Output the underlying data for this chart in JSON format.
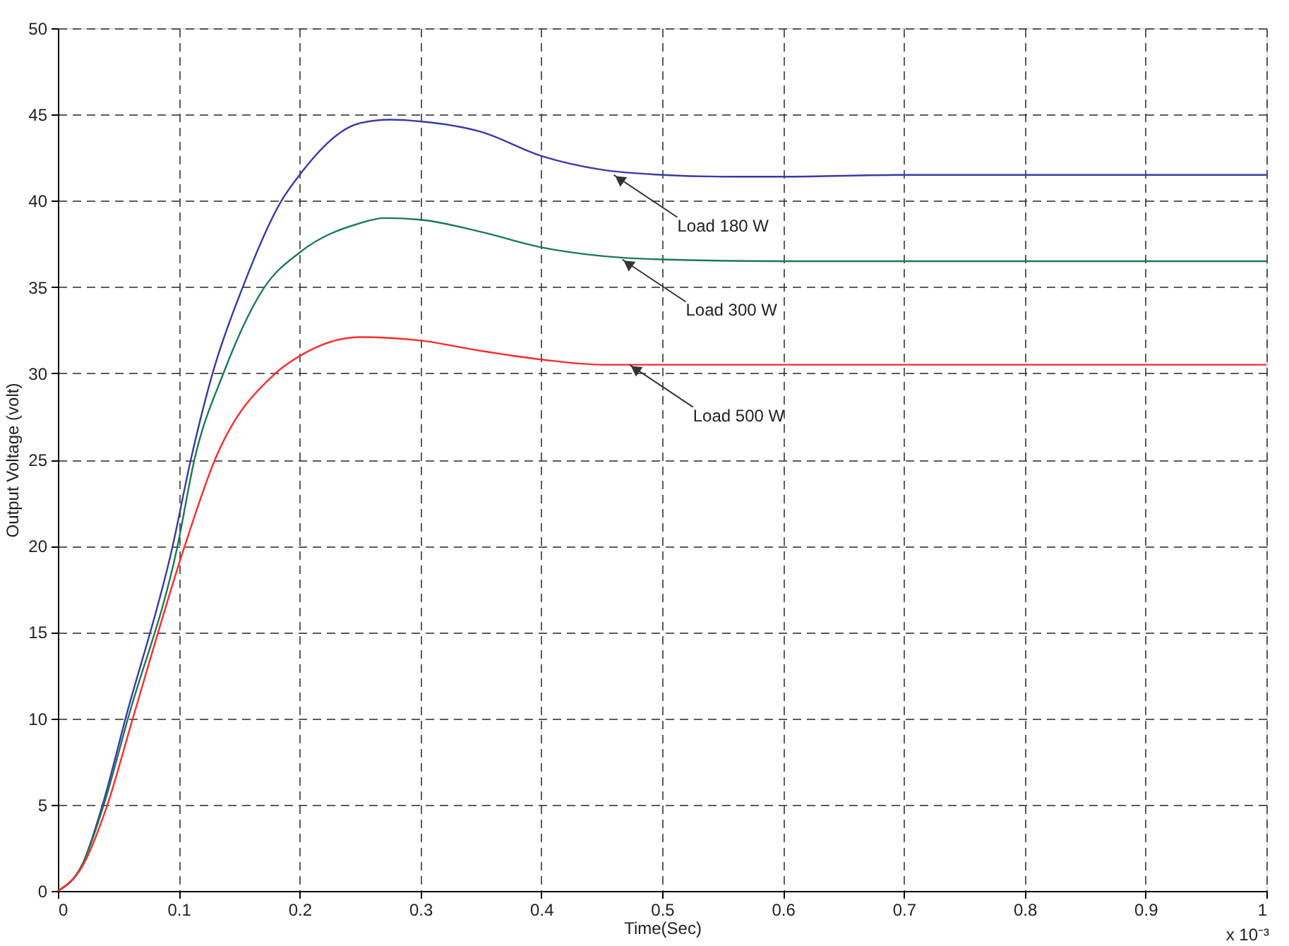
{
  "chart_data": {
    "type": "line",
    "xlabel": "Time(Sec)",
    "ylabel": "Output Voltage (volt)",
    "xlim": [
      0,
      1
    ],
    "ylim": [
      0,
      50
    ],
    "xticks": [
      0,
      0.1,
      0.2,
      0.3,
      0.4,
      0.5,
      0.6,
      0.7,
      0.8,
      0.9,
      1
    ],
    "yticks": [
      0,
      5,
      10,
      15,
      20,
      25,
      30,
      35,
      40,
      45,
      50
    ],
    "grid": true,
    "line_style": "solid",
    "marker": "none",
    "annotations": [
      {
        "text": "Load 180 W",
        "x": 0.46,
        "y": 41.5
      },
      {
        "text": "Load 300 W",
        "x": 0.467,
        "y": 36.6
      },
      {
        "text": "Load 500 W",
        "x": 0.473,
        "y": 30.5
      },
      "x 10⁻³"
    ],
    "series": [
      {
        "color": "#3a3aa8",
        "x": [
          0,
          0.02,
          0.037,
          0.056,
          0.095,
          0.11,
          0.128,
          0.153,
          0.185,
          0.2,
          0.25,
          0.275,
          0.3,
          0.35,
          0.4,
          0.45,
          0.5,
          0.55,
          0.6,
          0.7,
          0.8,
          0.9,
          1
        ],
        "values": [
          0,
          1.5,
          5,
          10,
          20,
          25,
          30,
          35,
          40,
          41.5,
          44.5,
          44.7,
          44.6,
          44.0,
          42.6,
          41.8,
          41.5,
          41.4,
          41.4,
          41.5,
          41.5,
          41.5,
          41.5
        ]
      },
      {
        "color": "#1a7a55",
        "x": [
          0,
          0.02,
          0.038,
          0.058,
          0.099,
          0.113,
          0.137,
          0.171,
          0.2,
          0.25,
          0.27,
          0.3,
          0.35,
          0.4,
          0.45,
          0.5,
          0.6,
          0.7,
          0.8,
          0.9,
          1
        ],
        "values": [
          0,
          1.5,
          5,
          10,
          20,
          25,
          30,
          35,
          37,
          38.7,
          39.0,
          38.9,
          38.2,
          37.3,
          36.8,
          36.6,
          36.5,
          36.5,
          36.5,
          36.5,
          36.5
        ]
      },
      {
        "color": "#ff2a2a",
        "x": [
          0,
          0.02,
          0.041,
          0.062,
          0.105,
          0.13,
          0.18,
          0.2,
          0.25,
          0.3,
          0.35,
          0.4,
          0.45,
          0.5,
          0.6,
          0.7,
          0.8,
          0.9,
          1
        ],
        "values": [
          0,
          1.4,
          5,
          10,
          20,
          25,
          30,
          31,
          32.1,
          31.9,
          31.3,
          30.8,
          30.5,
          30.5,
          30.5,
          30.5,
          30.5,
          30.5,
          30.5
        ]
      }
    ]
  }
}
